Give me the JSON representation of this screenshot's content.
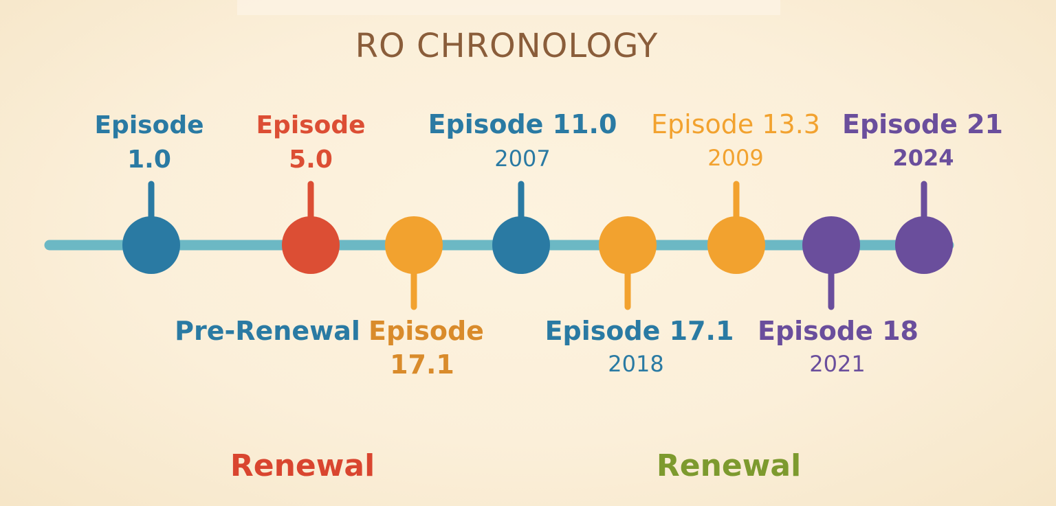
{
  "title": "RO CHRONOLOGY",
  "colors": {
    "background": "#fbefd9",
    "title": "#8a5d3a",
    "axis": "#6cb8c4",
    "blue": "#2a7aa3",
    "red": "#dc4e34",
    "orange": "#f2a22f",
    "orange_text": "#d98b2b",
    "purple": "#6a4e9c",
    "renewal_red": "#d9452f",
    "renewal_green": "#7d9a2e"
  },
  "nodes": [
    {
      "id": "ep1",
      "color": "blue",
      "side": "top",
      "label_lines": [
        "Episode",
        "1.0"
      ],
      "label_weights": [
        "600",
        "700"
      ]
    },
    {
      "id": "ep5",
      "color": "red",
      "side": "top",
      "label_lines": [
        "Episode",
        "5.0"
      ],
      "label_weights": [
        "600",
        "700"
      ]
    },
    {
      "id": "ep17a",
      "color": "orange",
      "side": "bottom",
      "label_lines": [
        "Episode",
        "17.1"
      ],
      "label_color": "orange_text",
      "label_weights": [
        "600",
        "700"
      ]
    },
    {
      "id": "ep11",
      "color": "blue",
      "side": "top",
      "label_lines": [
        "Episode 11.0",
        "2007"
      ],
      "label_weights": [
        "600",
        "400"
      ]
    },
    {
      "id": "ep17b",
      "color": "orange",
      "side": "bottom",
      "label_lines": [
        "Episode 17.1",
        "2018"
      ],
      "label_color": "blue",
      "label_weights": [
        "600",
        "400"
      ]
    },
    {
      "id": "ep13",
      "color": "orange",
      "side": "top",
      "label_lines": [
        "Episode 13.3",
        "2009"
      ],
      "label_weights": [
        "500",
        "400"
      ]
    },
    {
      "id": "ep18",
      "color": "purple",
      "side": "bottom",
      "label_lines": [
        "Episode 18",
        "2021"
      ],
      "label_weights": [
        "600",
        "400"
      ]
    },
    {
      "id": "ep21",
      "color": "purple",
      "side": "top",
      "label_lines": [
        "Episode 21",
        "2024"
      ],
      "label_weights": [
        "600",
        "700"
      ]
    }
  ],
  "annotations": [
    {
      "id": "pre-renewal",
      "text": "Pre-Renewal",
      "color": "blue"
    }
  ],
  "era_bar": {
    "left_label": "Renewal",
    "right_label": "Renewal",
    "left_color": "renewal_red",
    "right_color": "renewal_green"
  }
}
